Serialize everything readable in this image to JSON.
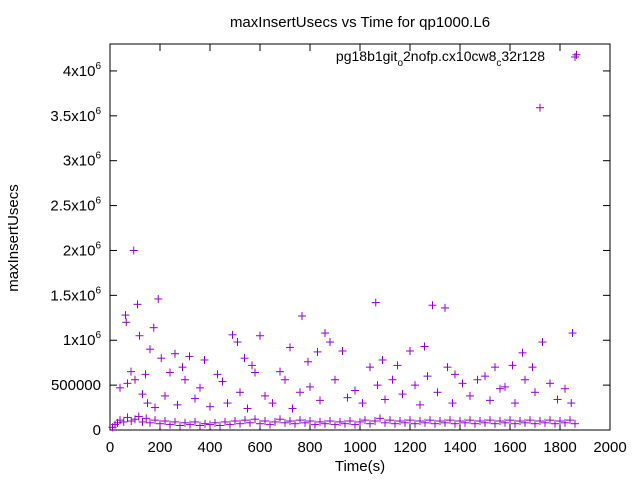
{
  "chart_data": {
    "type": "scatter",
    "title": "maxInsertUsecs vs Time for qp1000.L6",
    "xlabel": "Time(s)",
    "ylabel": "maxInsertUsecs",
    "xlim": [
      0,
      2000
    ],
    "ylim": [
      0,
      4300000
    ],
    "x_ticks": [
      0,
      200,
      400,
      600,
      800,
      1000,
      1200,
      1400,
      1600,
      1800,
      2000
    ],
    "x_tick_labels": [
      "0",
      "200",
      "400",
      "600",
      "800",
      "1000",
      "1200",
      "1400",
      "1600",
      "1800",
      "2000"
    ],
    "y_ticks": [
      {
        "value": 0,
        "mantissa": "0",
        "exp": ""
      },
      {
        "value": 500000,
        "mantissa": "500000",
        "exp": ""
      },
      {
        "value": 1000000,
        "mantissa": "1x10",
        "exp": "6"
      },
      {
        "value": 1500000,
        "mantissa": "1.5x10",
        "exp": "6"
      },
      {
        "value": 2000000,
        "mantissa": "2x10",
        "exp": "6"
      },
      {
        "value": 2500000,
        "mantissa": "2.5x10",
        "exp": "6"
      },
      {
        "value": 3000000,
        "mantissa": "3x10",
        "exp": "6"
      },
      {
        "value": 3500000,
        "mantissa": "3.5x10",
        "exp": "6"
      },
      {
        "value": 4000000,
        "mantissa": "4x10",
        "exp": "6"
      }
    ],
    "grid": false,
    "legend_position": "top-right",
    "series": [
      {
        "name": "pg18b1git_o2nofp.cx10cw8_c32r128",
        "legend_parts": [
          {
            "t": "pg18b1git",
            "sub": false
          },
          {
            "t": "o",
            "sub": true
          },
          {
            "t": "2nofp.cx10cw8",
            "sub": false
          },
          {
            "t": "c",
            "sub": true
          },
          {
            "t": "32r128",
            "sub": false
          }
        ],
        "color": "#9400d3",
        "marker": "plus",
        "points": [
          [
            62,
            1280000
          ],
          [
            65,
            1200000
          ],
          [
            84,
            650000
          ],
          [
            95,
            2000000
          ],
          [
            110,
            1400000
          ],
          [
            118,
            1050000
          ],
          [
            142,
            620000
          ],
          [
            160,
            900000
          ],
          [
            175,
            1140000
          ],
          [
            193,
            1460000
          ],
          [
            205,
            800000
          ],
          [
            260,
            850000
          ],
          [
            290,
            700000
          ],
          [
            318,
            820000
          ],
          [
            378,
            780000
          ],
          [
            430,
            620000
          ],
          [
            490,
            1060000
          ],
          [
            510,
            980000
          ],
          [
            538,
            800000
          ],
          [
            568,
            720000
          ],
          [
            600,
            1050000
          ],
          [
            680,
            650000
          ],
          [
            720,
            920000
          ],
          [
            768,
            1270000
          ],
          [
            792,
            760000
          ],
          [
            830,
            870000
          ],
          [
            860,
            1080000
          ],
          [
            880,
            980000
          ],
          [
            930,
            880000
          ],
          [
            1063,
            1420000
          ],
          [
            1090,
            780000
          ],
          [
            1150,
            720000
          ],
          [
            1200,
            880000
          ],
          [
            1258,
            930000
          ],
          [
            1290,
            1390000
          ],
          [
            1340,
            1360000
          ],
          [
            1350,
            700000
          ],
          [
            1380,
            620000
          ],
          [
            1500,
            600000
          ],
          [
            1540,
            700000
          ],
          [
            1560,
            460000
          ],
          [
            1610,
            720000
          ],
          [
            1650,
            860000
          ],
          [
            1690,
            700000
          ],
          [
            1720,
            3590000
          ],
          [
            1730,
            980000
          ],
          [
            1850,
            1080000
          ],
          [
            1866,
            4180000
          ],
          [
            40,
            470000
          ],
          [
            70,
            520000
          ],
          [
            100,
            560000
          ],
          [
            130,
            400000
          ],
          [
            150,
            300000
          ],
          [
            180,
            250000
          ],
          [
            220,
            380000
          ],
          [
            240,
            640000
          ],
          [
            270,
            280000
          ],
          [
            300,
            560000
          ],
          [
            340,
            350000
          ],
          [
            360,
            470000
          ],
          [
            400,
            260000
          ],
          [
            450,
            540000
          ],
          [
            470,
            300000
          ],
          [
            520,
            420000
          ],
          [
            550,
            240000
          ],
          [
            580,
            640000
          ],
          [
            620,
            380000
          ],
          [
            650,
            300000
          ],
          [
            700,
            560000
          ],
          [
            730,
            240000
          ],
          [
            760,
            420000
          ],
          [
            800,
            480000
          ],
          [
            840,
            330000
          ],
          [
            900,
            560000
          ],
          [
            950,
            360000
          ],
          [
            980,
            440000
          ],
          [
            1010,
            300000
          ],
          [
            1040,
            700000
          ],
          [
            1070,
            500000
          ],
          [
            1100,
            340000
          ],
          [
            1130,
            560000
          ],
          [
            1170,
            400000
          ],
          [
            1220,
            500000
          ],
          [
            1240,
            280000
          ],
          [
            1270,
            600000
          ],
          [
            1310,
            420000
          ],
          [
            1370,
            300000
          ],
          [
            1410,
            520000
          ],
          [
            1440,
            380000
          ],
          [
            1470,
            560000
          ],
          [
            1520,
            330000
          ],
          [
            1580,
            480000
          ],
          [
            1620,
            300000
          ],
          [
            1660,
            560000
          ],
          [
            1700,
            420000
          ],
          [
            1760,
            520000
          ],
          [
            1790,
            340000
          ],
          [
            1820,
            460000
          ],
          [
            1845,
            300000
          ],
          [
            10,
            30000
          ],
          [
            20,
            60000
          ],
          [
            30,
            80000
          ],
          [
            40,
            110000
          ],
          [
            55,
            90000
          ],
          [
            70,
            140000
          ],
          [
            85,
            100000
          ],
          [
            100,
            120000
          ],
          [
            115,
            150000
          ],
          [
            130,
            90000
          ],
          [
            145,
            130000
          ],
          [
            160,
            80000
          ],
          [
            180,
            110000
          ],
          [
            200,
            70000
          ],
          [
            220,
            100000
          ],
          [
            240,
            60000
          ],
          [
            260,
            90000
          ],
          [
            280,
            50000
          ],
          [
            300,
            80000
          ],
          [
            320,
            60000
          ],
          [
            340,
            90000
          ],
          [
            360,
            50000
          ],
          [
            380,
            70000
          ],
          [
            400,
            60000
          ],
          [
            420,
            80000
          ],
          [
            440,
            50000
          ],
          [
            460,
            90000
          ],
          [
            480,
            60000
          ],
          [
            500,
            100000
          ],
          [
            520,
            70000
          ],
          [
            540,
            110000
          ],
          [
            560,
            80000
          ],
          [
            580,
            120000
          ],
          [
            600,
            70000
          ],
          [
            620,
            100000
          ],
          [
            640,
            60000
          ],
          [
            660,
            90000
          ],
          [
            680,
            120000
          ],
          [
            700,
            80000
          ],
          [
            720,
            100000
          ],
          [
            740,
            70000
          ],
          [
            760,
            110000
          ],
          [
            780,
            80000
          ],
          [
            800,
            100000
          ],
          [
            820,
            60000
          ],
          [
            840,
            90000
          ],
          [
            860,
            70000
          ],
          [
            880,
            100000
          ],
          [
            900,
            60000
          ],
          [
            920,
            90000
          ],
          [
            940,
            70000
          ],
          [
            960,
            100000
          ],
          [
            980,
            60000
          ],
          [
            1000,
            90000
          ],
          [
            1020,
            110000
          ],
          [
            1040,
            70000
          ],
          [
            1060,
            100000
          ],
          [
            1080,
            130000
          ],
          [
            1100,
            80000
          ],
          [
            1120,
            110000
          ],
          [
            1140,
            70000
          ],
          [
            1160,
            100000
          ],
          [
            1180,
            80000
          ],
          [
            1200,
            110000
          ],
          [
            1220,
            70000
          ],
          [
            1240,
            100000
          ],
          [
            1260,
            80000
          ],
          [
            1280,
            110000
          ],
          [
            1300,
            70000
          ],
          [
            1320,
            100000
          ],
          [
            1340,
            80000
          ],
          [
            1360,
            110000
          ],
          [
            1380,
            70000
          ],
          [
            1400,
            100000
          ],
          [
            1420,
            80000
          ],
          [
            1440,
            110000
          ],
          [
            1460,
            70000
          ],
          [
            1480,
            100000
          ],
          [
            1500,
            80000
          ],
          [
            1520,
            110000
          ],
          [
            1540,
            70000
          ],
          [
            1560,
            100000
          ],
          [
            1580,
            80000
          ],
          [
            1600,
            110000
          ],
          [
            1620,
            70000
          ],
          [
            1640,
            100000
          ],
          [
            1660,
            80000
          ],
          [
            1680,
            110000
          ],
          [
            1700,
            70000
          ],
          [
            1720,
            100000
          ],
          [
            1740,
            80000
          ],
          [
            1760,
            110000
          ],
          [
            1780,
            70000
          ],
          [
            1800,
            100000
          ],
          [
            1820,
            80000
          ],
          [
            1840,
            110000
          ],
          [
            1860,
            70000
          ]
        ]
      }
    ]
  }
}
